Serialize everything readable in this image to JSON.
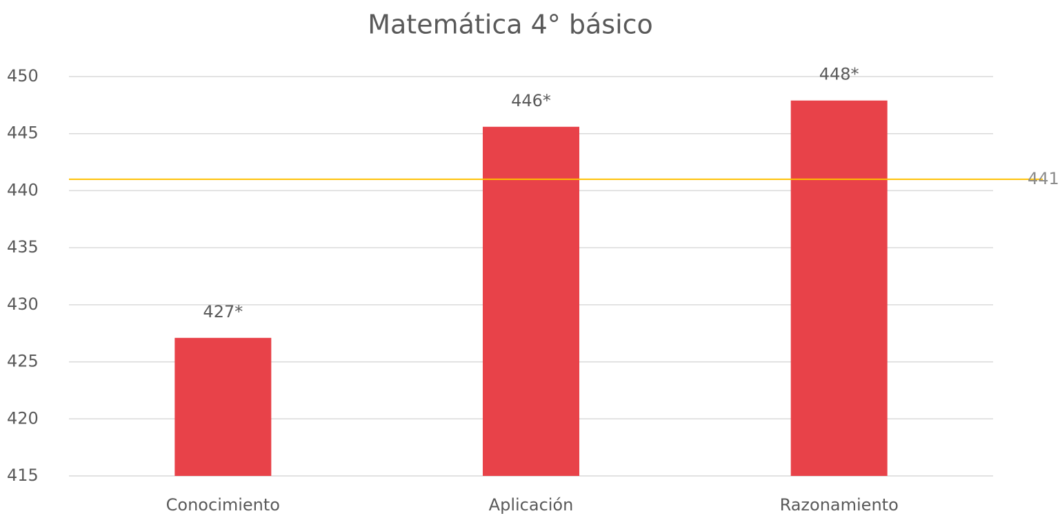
{
  "chart_data": {
    "type": "bar",
    "title": "Matemática 4° básico",
    "categories": [
      "Conocimiento",
      "Aplicación",
      "Razonamiento"
    ],
    "values": [
      427.1,
      445.6,
      447.9
    ],
    "value_labels": [
      "427*",
      "446*",
      "448*"
    ],
    "color": "#e84249",
    "ylim": [
      415,
      450
    ],
    "yticks": [
      415,
      420,
      425,
      430,
      435,
      440,
      445,
      450
    ],
    "grid": true,
    "reference_line": {
      "value": 441,
      "color": "#ffc000"
    }
  }
}
